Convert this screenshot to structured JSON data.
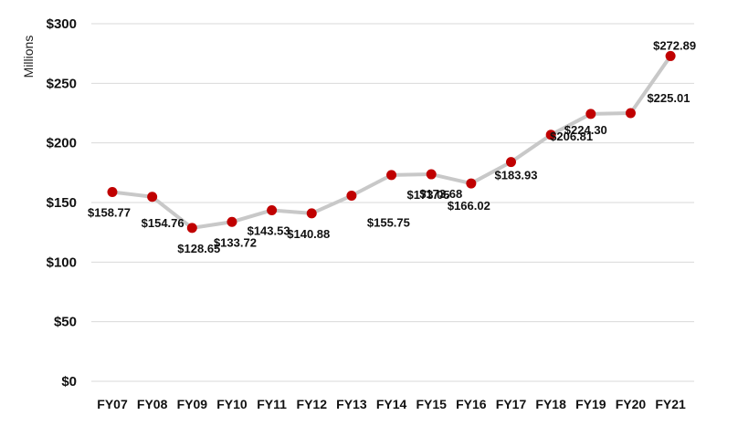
{
  "chart_data": {
    "type": "line",
    "ylabel": "Millions",
    "xlabel": "",
    "title": "",
    "categories": [
      "FY07",
      "FY08",
      "FY09",
      "FY10",
      "FY11",
      "FY12",
      "FY13",
      "FY14",
      "FY15",
      "FY16",
      "FY17",
      "FY18",
      "FY19",
      "FY20",
      "FY21"
    ],
    "series": [
      {
        "values": [
          158.77,
          154.76,
          128.65,
          133.72,
          143.53,
          140.88,
          155.75,
          173.05,
          173.68,
          166.02,
          183.93,
          206.81,
          224.3,
          225.01,
          272.89
        ],
        "labels": [
          "$158.77",
          "$154.76",
          "$128.65",
          "$133.72",
          "$143.53",
          "$140.88",
          "$155.75",
          "$173.05",
          "$173.68",
          "$166.02",
          "$183.93",
          "$206.81",
          "$224.30",
          "$225.01",
          "$272.89"
        ]
      }
    ],
    "ylim": [
      0,
      300
    ],
    "yticks": [
      0,
      50,
      100,
      150,
      200,
      250,
      300
    ],
    "ytick_labels": [
      "$0",
      "$50",
      "$100",
      "$150",
      "$200",
      "$250",
      "$300"
    ],
    "grid": true,
    "line_color": "#c8c8c8",
    "marker_color": "#c00000",
    "grid_color": "#d9d9d9"
  }
}
